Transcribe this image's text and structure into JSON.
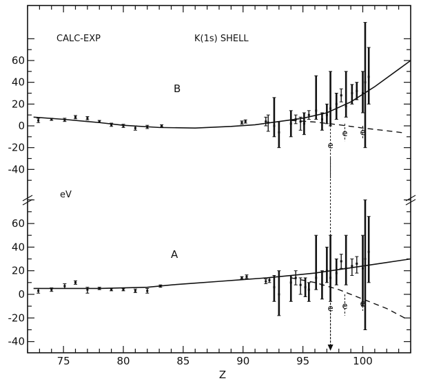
{
  "chart_data": {
    "type": "scatter",
    "title": "",
    "xlabel": "Z",
    "ylabel": "eV",
    "annotations": {
      "left": "CALC-EXP",
      "right": "K(1s) SHELL",
      "panel_b": "B",
      "panel_a": "A",
      "e_marker": "e"
    },
    "x_ticks": [
      75,
      80,
      85,
      90,
      95,
      100
    ],
    "xlim": [
      72,
      104
    ],
    "panels": [
      {
        "name": "B",
        "y_ticks": [
          -40,
          -20,
          0,
          20,
          40,
          60
        ],
        "ylim": [
          -50,
          80
        ],
        "curve_solid": [
          [
            72.5,
            8
          ],
          [
            75,
            6
          ],
          [
            78,
            3
          ],
          [
            80,
            0.5
          ],
          [
            83,
            -1.5
          ],
          [
            86,
            -2
          ],
          [
            89,
            -0.5
          ],
          [
            91,
            1
          ],
          [
            93,
            4
          ],
          [
            95,
            7
          ],
          [
            97,
            12
          ],
          [
            99,
            22
          ],
          [
            101,
            36
          ],
          [
            103,
            52
          ],
          [
            104,
            60
          ]
        ],
        "curve_dashed": [
          [
            94,
            5
          ],
          [
            96,
            3.5
          ],
          [
            98,
            1
          ],
          [
            100,
            -2
          ],
          [
            102,
            -4.5
          ],
          [
            103.5,
            -6.5
          ]
        ],
        "points": [
          {
            "x": 72.9,
            "y": 5,
            "lo": 3,
            "hi": 7
          },
          {
            "x": 74.0,
            "y": 6,
            "lo": 5,
            "hi": 7
          },
          {
            "x": 75.1,
            "y": 5.5,
            "lo": 4,
            "hi": 7
          },
          {
            "x": 76.0,
            "y": 8,
            "lo": 6.5,
            "hi": 9.5
          },
          {
            "x": 77.0,
            "y": 7,
            "lo": 5.5,
            "hi": 8.5
          },
          {
            "x": 78.0,
            "y": 4,
            "lo": 3,
            "hi": 5
          },
          {
            "x": 79.0,
            "y": 1,
            "lo": -0.5,
            "hi": 2.5
          },
          {
            "x": 80.0,
            "y": 0,
            "lo": -1.5,
            "hi": 1.5
          },
          {
            "x": 81.0,
            "y": -2,
            "lo": -4,
            "hi": 0
          },
          {
            "x": 82.0,
            "y": -1,
            "lo": -2.5,
            "hi": 0.5
          },
          {
            "x": 83.2,
            "y": 0,
            "lo": -1,
            "hi": 1
          },
          {
            "x": 89.9,
            "y": 3,
            "lo": 1.5,
            "hi": 4.5
          },
          {
            "x": 90.2,
            "y": 4,
            "lo": 2.5,
            "hi": 5.5
          },
          {
            "x": 91.9,
            "y": 4,
            "lo": 0,
            "hi": 8
          },
          {
            "x": 92.1,
            "y": 3,
            "lo": -5,
            "hi": 10
          },
          {
            "x": 92.6,
            "y": 0,
            "lo": -10,
            "hi": 26
          },
          {
            "x": 93.0,
            "y": -6,
            "lo": -20,
            "hi": 4
          },
          {
            "x": 94.0,
            "y": 2,
            "lo": -10,
            "hi": 14
          },
          {
            "x": 94.4,
            "y": 6,
            "lo": 2,
            "hi": 10
          },
          {
            "x": 94.8,
            "y": 4,
            "lo": -4,
            "hi": 8
          },
          {
            "x": 95.1,
            "y": 2,
            "lo": -8,
            "hi": 12
          },
          {
            "x": 95.5,
            "y": 10,
            "lo": 6,
            "hi": 14
          },
          {
            "x": 96.1,
            "y": 14,
            "lo": 6,
            "hi": 46
          },
          {
            "x": 96.6,
            "y": 6,
            "lo": -4,
            "hi": 12
          },
          {
            "x": 97.0,
            "y": 10,
            "lo": 2,
            "hi": 20
          },
          {
            "x": 97.3,
            "y": 16,
            "lo": 0,
            "hi": 50
          },
          {
            "x": 97.8,
            "y": 20,
            "lo": 6,
            "hi": 30
          },
          {
            "x": 98.2,
            "y": 28,
            "lo": 22,
            "hi": 34
          },
          {
            "x": 98.6,
            "y": 18,
            "lo": 8,
            "hi": 50
          },
          {
            "x": 99.1,
            "y": 30,
            "lo": 20,
            "hi": 38
          },
          {
            "x": 99.5,
            "y": 32,
            "lo": 24,
            "hi": 40
          },
          {
            "x": 100.0,
            "y": 30,
            "lo": 12,
            "hi": 50
          },
          {
            "x": 100.2,
            "y": 40,
            "lo": -20,
            "hi": 95
          },
          {
            "x": 100.5,
            "y": 45,
            "lo": 20,
            "hi": 72
          }
        ],
        "e_points": [
          {
            "x": 97.3,
            "y": -18,
            "hi": 10,
            "lo": -90
          },
          {
            "x": 98.5,
            "y": -7,
            "hi": 2,
            "lo": -14
          },
          {
            "x": 100.0,
            "y": -6,
            "hi": 0,
            "lo": -12
          }
        ]
      },
      {
        "name": "A",
        "y_ticks": [
          -40,
          -20,
          0,
          20,
          40,
          60
        ],
        "ylim": [
          -50,
          80
        ],
        "curve_solid": [
          [
            72.5,
            5
          ],
          [
            75,
            5
          ],
          [
            78,
            5
          ],
          [
            80,
            5.5
          ],
          [
            82,
            6
          ],
          [
            84,
            8
          ],
          [
            86,
            9.5
          ],
          [
            88,
            11
          ],
          [
            90,
            12.5
          ],
          [
            92,
            14
          ],
          [
            94,
            16
          ],
          [
            96,
            18
          ],
          [
            98,
            21
          ],
          [
            100,
            24
          ],
          [
            102,
            27
          ],
          [
            104,
            30
          ]
        ],
        "curve_dashed": [
          [
            94,
            14
          ],
          [
            96,
            10
          ],
          [
            98,
            4
          ],
          [
            100,
            -4
          ],
          [
            102,
            -12
          ],
          [
            103.5,
            -20
          ]
        ],
        "points": [
          {
            "x": 72.9,
            "y": 3,
            "lo": 1,
            "hi": 5
          },
          {
            "x": 74.0,
            "y": 4,
            "lo": 2.5,
            "hi": 5.5
          },
          {
            "x": 75.1,
            "y": 7,
            "lo": 5,
            "hi": 9
          },
          {
            "x": 76.0,
            "y": 10,
            "lo": 8.5,
            "hi": 11.5
          },
          {
            "x": 77.0,
            "y": 4,
            "lo": 1,
            "hi": 6
          },
          {
            "x": 78.0,
            "y": 5,
            "lo": 4,
            "hi": 6
          },
          {
            "x": 79.0,
            "y": 4,
            "lo": 3,
            "hi": 5
          },
          {
            "x": 80.0,
            "y": 4,
            "lo": 3,
            "hi": 5
          },
          {
            "x": 81.0,
            "y": 3,
            "lo": 1.5,
            "hi": 4.5
          },
          {
            "x": 82.0,
            "y": 3,
            "lo": 1,
            "hi": 5
          },
          {
            "x": 83.1,
            "y": 7,
            "lo": 6,
            "hi": 8
          },
          {
            "x": 89.9,
            "y": 14,
            "lo": 13,
            "hi": 15
          },
          {
            "x": 90.3,
            "y": 15,
            "lo": 13.5,
            "hi": 16.5
          },
          {
            "x": 91.9,
            "y": 11,
            "lo": 9,
            "hi": 13
          },
          {
            "x": 92.2,
            "y": 12,
            "lo": 10,
            "hi": 14
          },
          {
            "x": 92.6,
            "y": 6,
            "lo": -6,
            "hi": 16
          },
          {
            "x": 93.0,
            "y": 0,
            "lo": -18,
            "hi": 20
          },
          {
            "x": 94.0,
            "y": 10,
            "lo": -6,
            "hi": 16
          },
          {
            "x": 94.4,
            "y": 14,
            "lo": 8,
            "hi": 20
          },
          {
            "x": 94.8,
            "y": 8,
            "lo": 0,
            "hi": 14
          },
          {
            "x": 95.2,
            "y": 6,
            "lo": -2,
            "hi": 14
          },
          {
            "x": 95.5,
            "y": 4,
            "lo": -6,
            "hi": 10
          },
          {
            "x": 96.1,
            "y": 14,
            "lo": 4,
            "hi": 50
          },
          {
            "x": 96.6,
            "y": 8,
            "lo": -4,
            "hi": 20
          },
          {
            "x": 97.0,
            "y": 20,
            "lo": 10,
            "hi": 40
          },
          {
            "x": 97.3,
            "y": 14,
            "lo": -6,
            "hi": 50
          },
          {
            "x": 97.8,
            "y": 18,
            "lo": 8,
            "hi": 30
          },
          {
            "x": 98.2,
            "y": 28,
            "lo": 22,
            "hi": 34
          },
          {
            "x": 98.6,
            "y": 22,
            "lo": 8,
            "hi": 50
          },
          {
            "x": 99.1,
            "y": 24,
            "lo": 16,
            "hi": 30
          },
          {
            "x": 99.5,
            "y": 26,
            "lo": 18,
            "hi": 32
          },
          {
            "x": 100.0,
            "y": 22,
            "lo": -10,
            "hi": 50
          },
          {
            "x": 100.2,
            "y": 30,
            "lo": -30,
            "hi": 80
          },
          {
            "x": 100.5,
            "y": 36,
            "lo": 10,
            "hi": 66
          }
        ],
        "e_points": [
          {
            "x": 97.3,
            "y": -12,
            "hi": 16,
            "lo": -50
          },
          {
            "x": 98.5,
            "y": -10,
            "hi": 0,
            "lo": -18
          },
          {
            "x": 100.0,
            "y": -8,
            "hi": 2,
            "lo": -14
          }
        ]
      }
    ],
    "grid": false
  }
}
